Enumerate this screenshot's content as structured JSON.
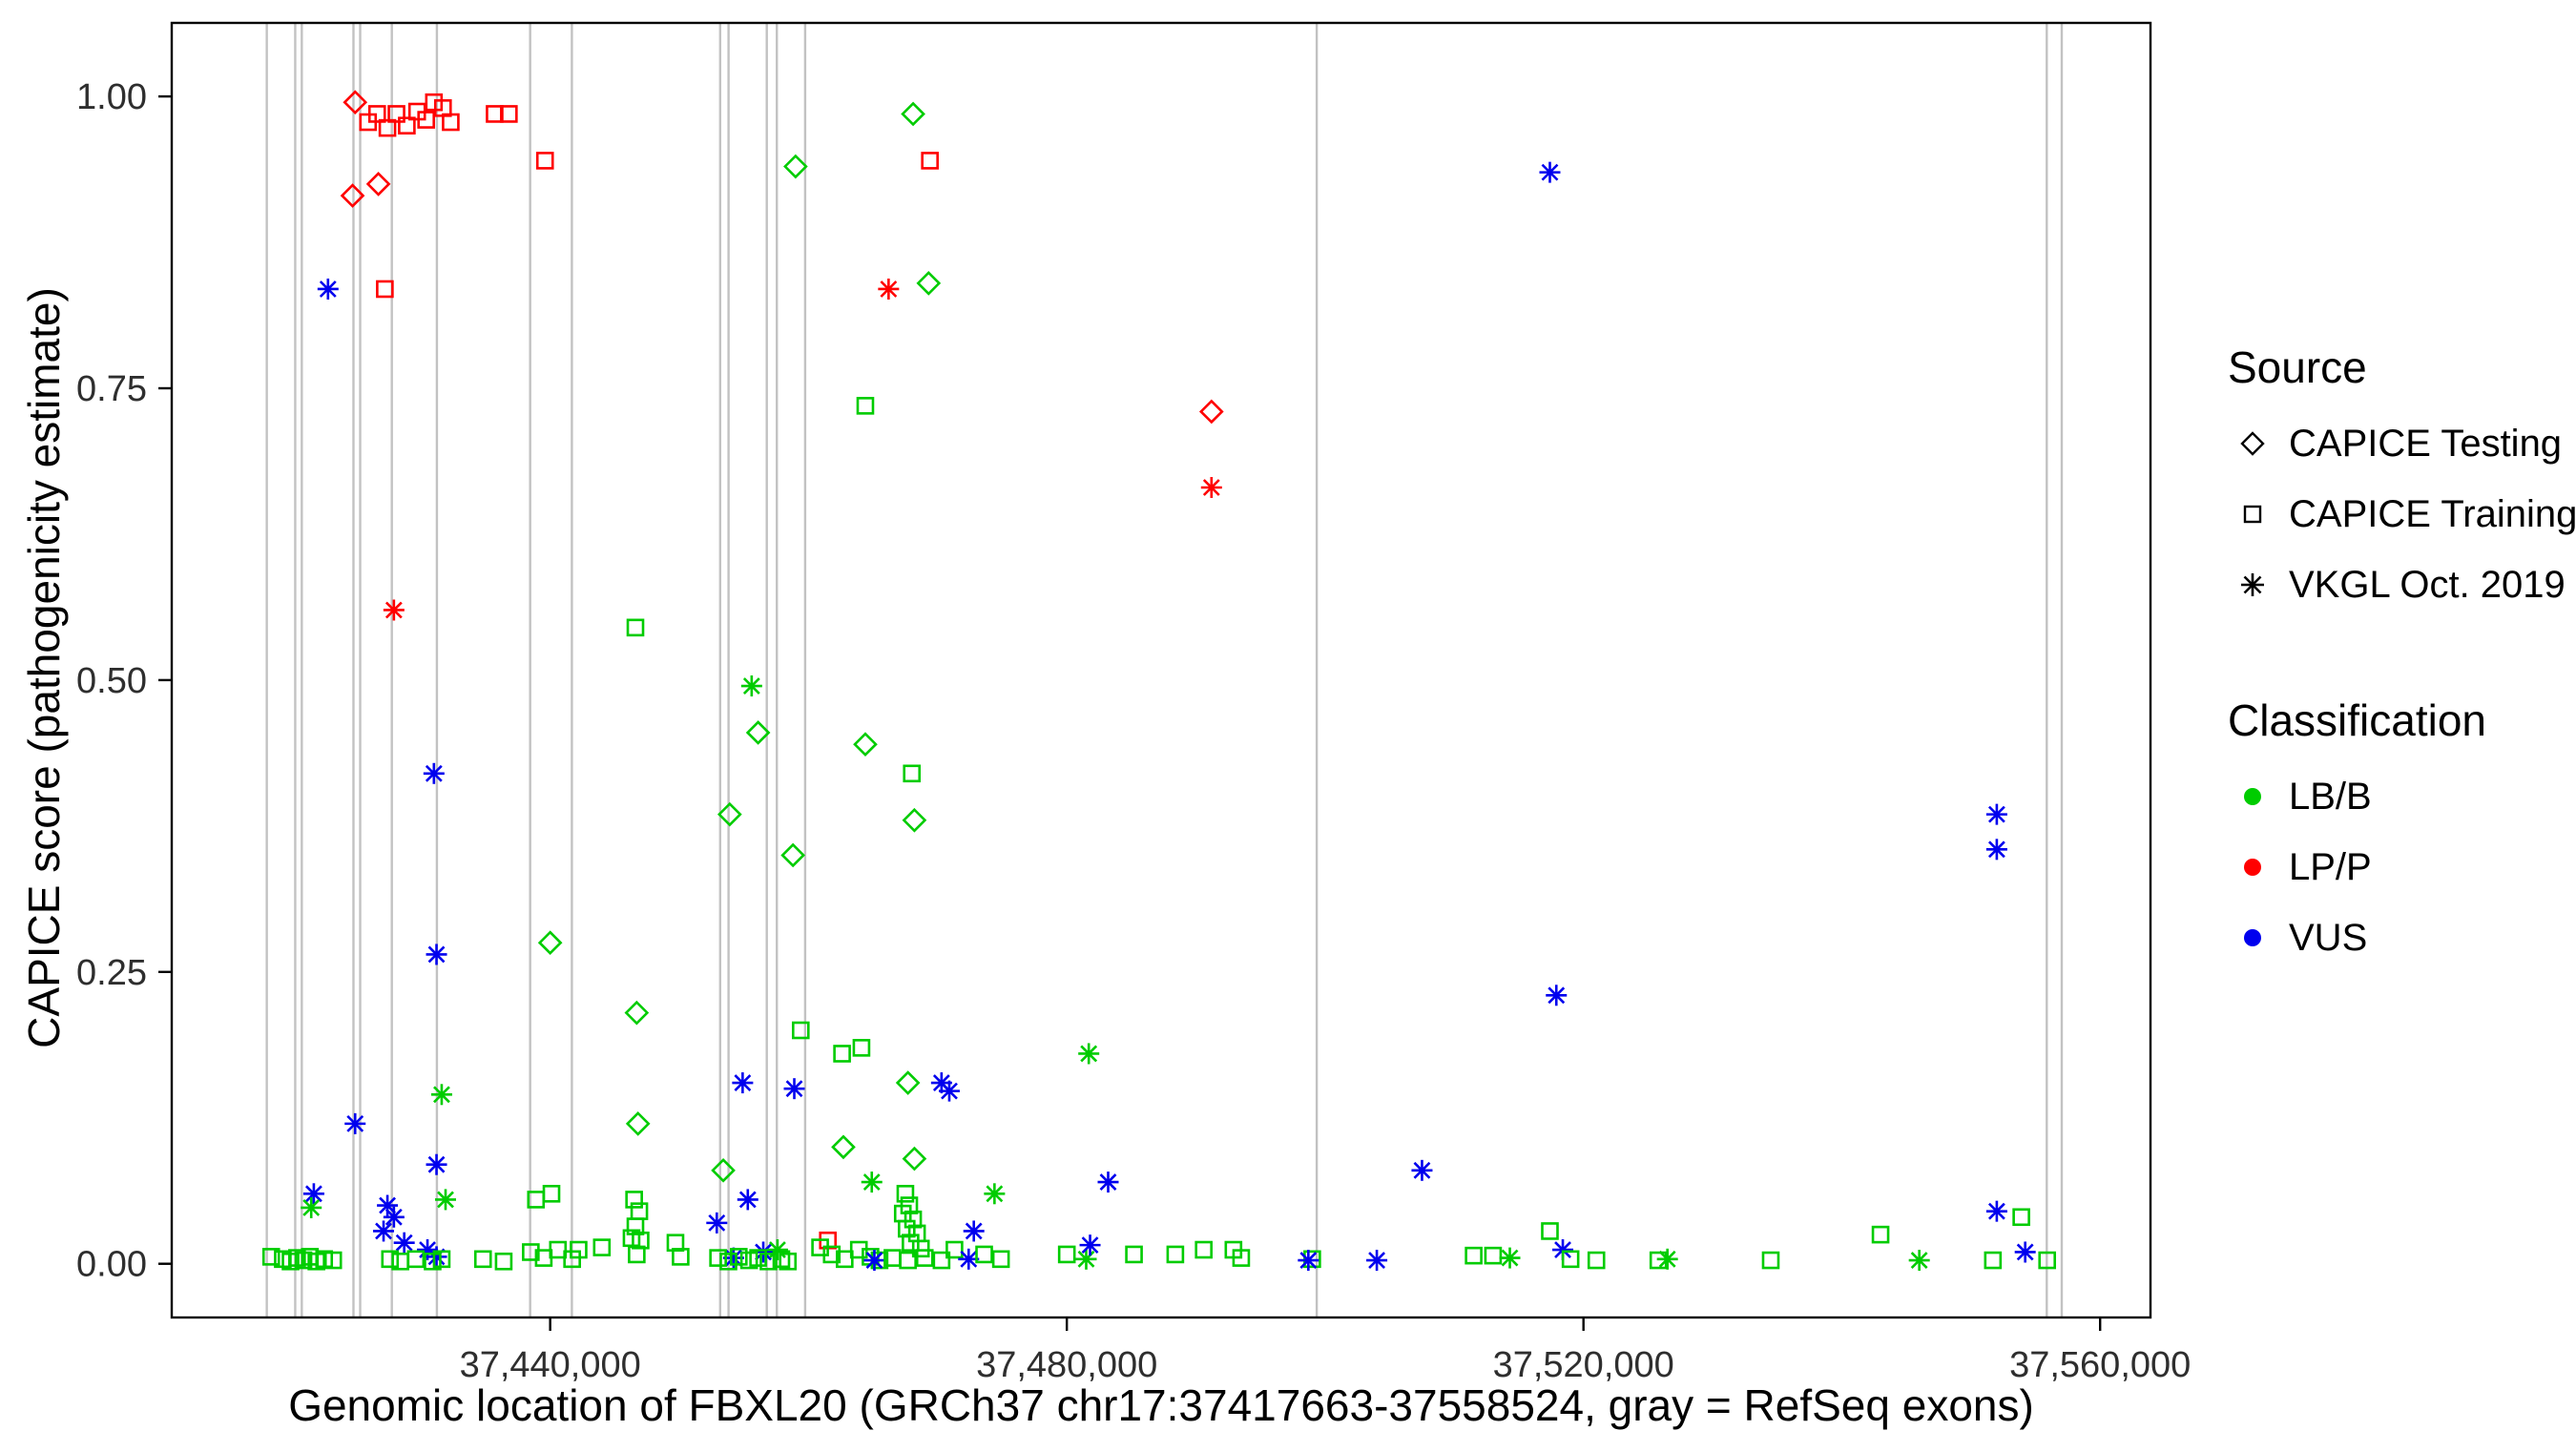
{
  "chart_data": {
    "type": "scatter",
    "title": "",
    "xlabel": "Genomic location of FBXL20 (GRCh37 chr17:37417663-37558524, gray = RefSeq exons)",
    "ylabel": "CAPICE score (pathogenicity estimate)",
    "xlim": [
      37410700,
      37563900
    ],
    "ylim": [
      -0.046,
      1.063
    ],
    "grid": "off",
    "x_ticks": [
      {
        "value": 37440000,
        "label": "37,440,000"
      },
      {
        "value": 37480000,
        "label": "37,480,000"
      },
      {
        "value": 37520000,
        "label": "37,520,000"
      },
      {
        "value": 37560000,
        "label": "37,560,000"
      }
    ],
    "y_ticks": [
      {
        "value": 0.0,
        "label": "0.00"
      },
      {
        "value": 0.25,
        "label": "0.25"
      },
      {
        "value": 0.5,
        "label": "0.50"
      },
      {
        "value": 0.75,
        "label": "0.75"
      },
      {
        "value": 1.0,
        "label": "1.00"
      }
    ],
    "exon_color": "#c2c2c2",
    "exon_positions": [
      37418060,
      37420260,
      37420770,
      37424770,
      37425290,
      37427740,
      37431230,
      37438450,
      37441680,
      37453160,
      37453810,
      37456770,
      37457550,
      37459740,
      37499350,
      37555870,
      37557030
    ],
    "source_markers": {
      "T": "diamond",
      "R": "square",
      "V": "asterisk"
    },
    "source_labels": {
      "T": "CAPICE Testing",
      "R": "CAPICE Training",
      "V": "VKGL Oct. 2019"
    },
    "class_colors": {
      "B": "#00CC00",
      "P": "#FF0000",
      "U": "#0000EE"
    },
    "class_labels": {
      "B": "LB/B",
      "P": "LP/P",
      "U": "VUS"
    },
    "points": [
      [
        37418400,
        0.006,
        "R",
        "B"
      ],
      [
        37419300,
        0.004,
        "R",
        "B"
      ],
      [
        37419900,
        0.002,
        "R",
        "B"
      ],
      [
        37420400,
        0.005,
        "R",
        "B"
      ],
      [
        37420900,
        0.003,
        "R",
        "B"
      ],
      [
        37421400,
        0.006,
        "R",
        "B"
      ],
      [
        37421900,
        0.002,
        "R",
        "B"
      ],
      [
        37422500,
        0.004,
        "R",
        "B"
      ],
      [
        37423200,
        0.003,
        "R",
        "B"
      ],
      [
        37421700,
        0.06,
        "V",
        "U"
      ],
      [
        37421500,
        0.048,
        "V",
        "B"
      ],
      [
        37422800,
        0.835,
        "V",
        "U"
      ],
      [
        37424900,
        0.995,
        "T",
        "P"
      ],
      [
        37424700,
        0.915,
        "T",
        "P"
      ],
      [
        37426700,
        0.925,
        "T",
        "P"
      ],
      [
        37425900,
        0.978,
        "R",
        "P"
      ],
      [
        37426600,
        0.985,
        "R",
        "P"
      ],
      [
        37427400,
        0.973,
        "R",
        "P"
      ],
      [
        37428100,
        0.985,
        "R",
        "P"
      ],
      [
        37428900,
        0.975,
        "R",
        "P"
      ],
      [
        37429700,
        0.987,
        "R",
        "P"
      ],
      [
        37430400,
        0.98,
        "R",
        "P"
      ],
      [
        37431000,
        0.995,
        "R",
        "P"
      ],
      [
        37431700,
        0.99,
        "R",
        "P"
      ],
      [
        37432300,
        0.978,
        "R",
        "P"
      ],
      [
        37427200,
        0.835,
        "R",
        "P"
      ],
      [
        37427900,
        0.56,
        "V",
        "P"
      ],
      [
        37424900,
        0.12,
        "V",
        "U"
      ],
      [
        37427400,
        0.05,
        "V",
        "U"
      ],
      [
        37427900,
        0.04,
        "V",
        "U"
      ],
      [
        37427100,
        0.028,
        "V",
        "U"
      ],
      [
        37428700,
        0.018,
        "V",
        "U"
      ],
      [
        37430500,
        0.012,
        "V",
        "U"
      ],
      [
        37431200,
        0.006,
        "V",
        "U"
      ],
      [
        37427600,
        0.004,
        "R",
        "B"
      ],
      [
        37428400,
        0.002,
        "R",
        "B"
      ],
      [
        37429600,
        0.004,
        "R",
        "B"
      ],
      [
        37430900,
        0.002,
        "R",
        "B"
      ],
      [
        37431600,
        0.004,
        "R",
        "B"
      ],
      [
        37431000,
        0.42,
        "V",
        "U"
      ],
      [
        37431200,
        0.265,
        "V",
        "U"
      ],
      [
        37431200,
        0.085,
        "V",
        "U"
      ],
      [
        37431600,
        0.145,
        "V",
        "B"
      ],
      [
        37431900,
        0.055,
        "V",
        "B"
      ],
      [
        37434800,
        0.004,
        "R",
        "B"
      ],
      [
        37436400,
        0.002,
        "R",
        "B"
      ],
      [
        37435700,
        0.985,
        "R",
        "P"
      ],
      [
        37436800,
        0.985,
        "R",
        "P"
      ],
      [
        37439600,
        0.945,
        "R",
        "P"
      ],
      [
        37440000,
        0.275,
        "T",
        "B"
      ],
      [
        37438900,
        0.055,
        "R",
        "B"
      ],
      [
        37440100,
        0.06,
        "R",
        "B"
      ],
      [
        37438500,
        0.01,
        "R",
        "B"
      ],
      [
        37439500,
        0.005,
        "R",
        "B"
      ],
      [
        37440600,
        0.012,
        "R",
        "B"
      ],
      [
        37441700,
        0.004,
        "R",
        "B"
      ],
      [
        37442200,
        0.012,
        "R",
        "B"
      ],
      [
        37444000,
        0.014,
        "R",
        "B"
      ],
      [
        37446600,
        0.545,
        "R",
        "B"
      ],
      [
        37446700,
        0.215,
        "T",
        "B"
      ],
      [
        37446800,
        0.12,
        "T",
        "B"
      ],
      [
        37446500,
        0.055,
        "R",
        "B"
      ],
      [
        37446900,
        0.045,
        "R",
        "B"
      ],
      [
        37446600,
        0.032,
        "R",
        "B"
      ],
      [
        37446300,
        0.022,
        "R",
        "B"
      ],
      [
        37447000,
        0.02,
        "R",
        "B"
      ],
      [
        37446700,
        0.008,
        "R",
        "B"
      ],
      [
        37449700,
        0.018,
        "R",
        "B"
      ],
      [
        37450100,
        0.006,
        "R",
        "B"
      ],
      [
        37452900,
        0.035,
        "V",
        "U"
      ],
      [
        37453900,
        0.385,
        "T",
        "B"
      ],
      [
        37453400,
        0.08,
        "T",
        "B"
      ],
      [
        37454900,
        0.155,
        "V",
        "U"
      ],
      [
        37455300,
        0.055,
        "V",
        "U"
      ],
      [
        37455600,
        0.495,
        "V",
        "B"
      ],
      [
        37456100,
        0.455,
        "T",
        "B"
      ],
      [
        37454200,
        0.005,
        "V",
        "U"
      ],
      [
        37456500,
        0.01,
        "V",
        "U"
      ],
      [
        37457600,
        0.012,
        "V",
        "B"
      ],
      [
        37453000,
        0.005,
        "R",
        "B"
      ],
      [
        37453800,
        0.002,
        "R",
        "B"
      ],
      [
        37454600,
        0.006,
        "R",
        "B"
      ],
      [
        37455400,
        0.003,
        "R",
        "B"
      ],
      [
        37456100,
        0.005,
        "R",
        "B"
      ],
      [
        37456900,
        0.002,
        "R",
        "B"
      ],
      [
        37457900,
        0.004,
        "R",
        "B"
      ],
      [
        37458400,
        0.002,
        "R",
        "B"
      ],
      [
        37458900,
        0.15,
        "V",
        "U"
      ],
      [
        37459400,
        0.2,
        "R",
        "B"
      ],
      [
        37458800,
        0.35,
        "T",
        "B"
      ],
      [
        37459000,
        0.94,
        "T",
        "B"
      ],
      [
        37461500,
        0.02,
        "R",
        "P"
      ],
      [
        37462600,
        0.18,
        "R",
        "B"
      ],
      [
        37464100,
        0.185,
        "R",
        "B"
      ],
      [
        37462700,
        0.1,
        "T",
        "B"
      ],
      [
        37464400,
        0.735,
        "R",
        "B"
      ],
      [
        37464400,
        0.445,
        "T",
        "B"
      ],
      [
        37464900,
        0.07,
        "V",
        "B"
      ],
      [
        37460900,
        0.014,
        "R",
        "B"
      ],
      [
        37461800,
        0.008,
        "R",
        "B"
      ],
      [
        37462800,
        0.004,
        "R",
        "B"
      ],
      [
        37463900,
        0.012,
        "R",
        "B"
      ],
      [
        37464800,
        0.006,
        "R",
        "B"
      ],
      [
        37465500,
        0.003,
        "R",
        "B"
      ],
      [
        37465100,
        0.003,
        "V",
        "U"
      ],
      [
        37466200,
        0.835,
        "V",
        "P"
      ],
      [
        37468100,
        0.985,
        "T",
        "B"
      ],
      [
        37469400,
        0.945,
        "R",
        "P"
      ],
      [
        37469300,
        0.84,
        "T",
        "B"
      ],
      [
        37468000,
        0.42,
        "R",
        "B"
      ],
      [
        37468200,
        0.38,
        "T",
        "B"
      ],
      [
        37467700,
        0.155,
        "T",
        "B"
      ],
      [
        37468200,
        0.09,
        "T",
        "B"
      ],
      [
        37470300,
        0.155,
        "V",
        "U"
      ],
      [
        37470900,
        0.148,
        "V",
        "U"
      ],
      [
        37467500,
        0.06,
        "R",
        "B"
      ],
      [
        37467800,
        0.05,
        "R",
        "B"
      ],
      [
        37467300,
        0.043,
        "R",
        "B"
      ],
      [
        37468100,
        0.038,
        "R",
        "B"
      ],
      [
        37467600,
        0.03,
        "R",
        "B"
      ],
      [
        37468400,
        0.026,
        "R",
        "B"
      ],
      [
        37467900,
        0.018,
        "R",
        "B"
      ],
      [
        37468700,
        0.013,
        "R",
        "B"
      ],
      [
        37466500,
        0.005,
        "R",
        "B"
      ],
      [
        37467700,
        0.003,
        "R",
        "B"
      ],
      [
        37469000,
        0.005,
        "R",
        "B"
      ],
      [
        37470300,
        0.003,
        "R",
        "B"
      ],
      [
        37471300,
        0.012,
        "R",
        "B"
      ],
      [
        37472800,
        0.028,
        "V",
        "U"
      ],
      [
        37472400,
        0.004,
        "V",
        "U"
      ],
      [
        37473600,
        0.008,
        "R",
        "B"
      ],
      [
        37474900,
        0.004,
        "R",
        "B"
      ],
      [
        37474400,
        0.06,
        "V",
        "B"
      ],
      [
        37480000,
        0.008,
        "R",
        "B"
      ],
      [
        37481500,
        0.004,
        "V",
        "B"
      ],
      [
        37481700,
        0.18,
        "V",
        "B"
      ],
      [
        37481800,
        0.016,
        "V",
        "U"
      ],
      [
        37483200,
        0.07,
        "V",
        "U"
      ],
      [
        37485200,
        0.008,
        "R",
        "B"
      ],
      [
        37488400,
        0.008,
        "R",
        "B"
      ],
      [
        37490600,
        0.012,
        "R",
        "B"
      ],
      [
        37491200,
        0.73,
        "T",
        "P"
      ],
      [
        37491200,
        0.665,
        "V",
        "P"
      ],
      [
        37492900,
        0.012,
        "R",
        "B"
      ],
      [
        37493500,
        0.005,
        "R",
        "B"
      ],
      [
        37499000,
        0.004,
        "R",
        "B"
      ],
      [
        37498700,
        0.003,
        "V",
        "U"
      ],
      [
        37504000,
        0.003,
        "V",
        "U"
      ],
      [
        37507500,
        0.08,
        "V",
        "U"
      ],
      [
        37511500,
        0.007,
        "R",
        "B"
      ],
      [
        37513000,
        0.007,
        "R",
        "B"
      ],
      [
        37514300,
        0.005,
        "V",
        "B"
      ],
      [
        37517400,
        0.935,
        "V",
        "U"
      ],
      [
        37517900,
        0.23,
        "V",
        "U"
      ],
      [
        37517400,
        0.028,
        "R",
        "B"
      ],
      [
        37518400,
        0.012,
        "V",
        "U"
      ],
      [
        37519000,
        0.004,
        "R",
        "B"
      ],
      [
        37521000,
        0.003,
        "R",
        "B"
      ],
      [
        37525800,
        0.003,
        "R",
        "B"
      ],
      [
        37526500,
        0.004,
        "V",
        "B"
      ],
      [
        37534500,
        0.003,
        "R",
        "B"
      ],
      [
        37543000,
        0.025,
        "R",
        "B"
      ],
      [
        37546000,
        0.003,
        "V",
        "B"
      ],
      [
        37552000,
        0.385,
        "V",
        "U"
      ],
      [
        37552000,
        0.355,
        "V",
        "U"
      ],
      [
        37552000,
        0.045,
        "V",
        "U"
      ],
      [
        37553900,
        0.04,
        "R",
        "B"
      ],
      [
        37551700,
        0.003,
        "R",
        "B"
      ],
      [
        37554200,
        0.01,
        "V",
        "U"
      ],
      [
        37555900,
        0.003,
        "R",
        "B"
      ]
    ]
  },
  "legend": {
    "source_title": "Source",
    "source_items": [
      {
        "label": "CAPICE Testing",
        "marker": "diamond"
      },
      {
        "label": "CAPICE Training",
        "marker": "square"
      },
      {
        "label": "VKGL Oct. 2019",
        "marker": "asterisk"
      }
    ],
    "classification_title": "Classification",
    "classification_items": [
      {
        "label": "LB/B",
        "color": "#00CC00"
      },
      {
        "label": "LP/P",
        "color": "#FF0000"
      },
      {
        "label": "VUS",
        "color": "#0000EE"
      }
    ]
  }
}
